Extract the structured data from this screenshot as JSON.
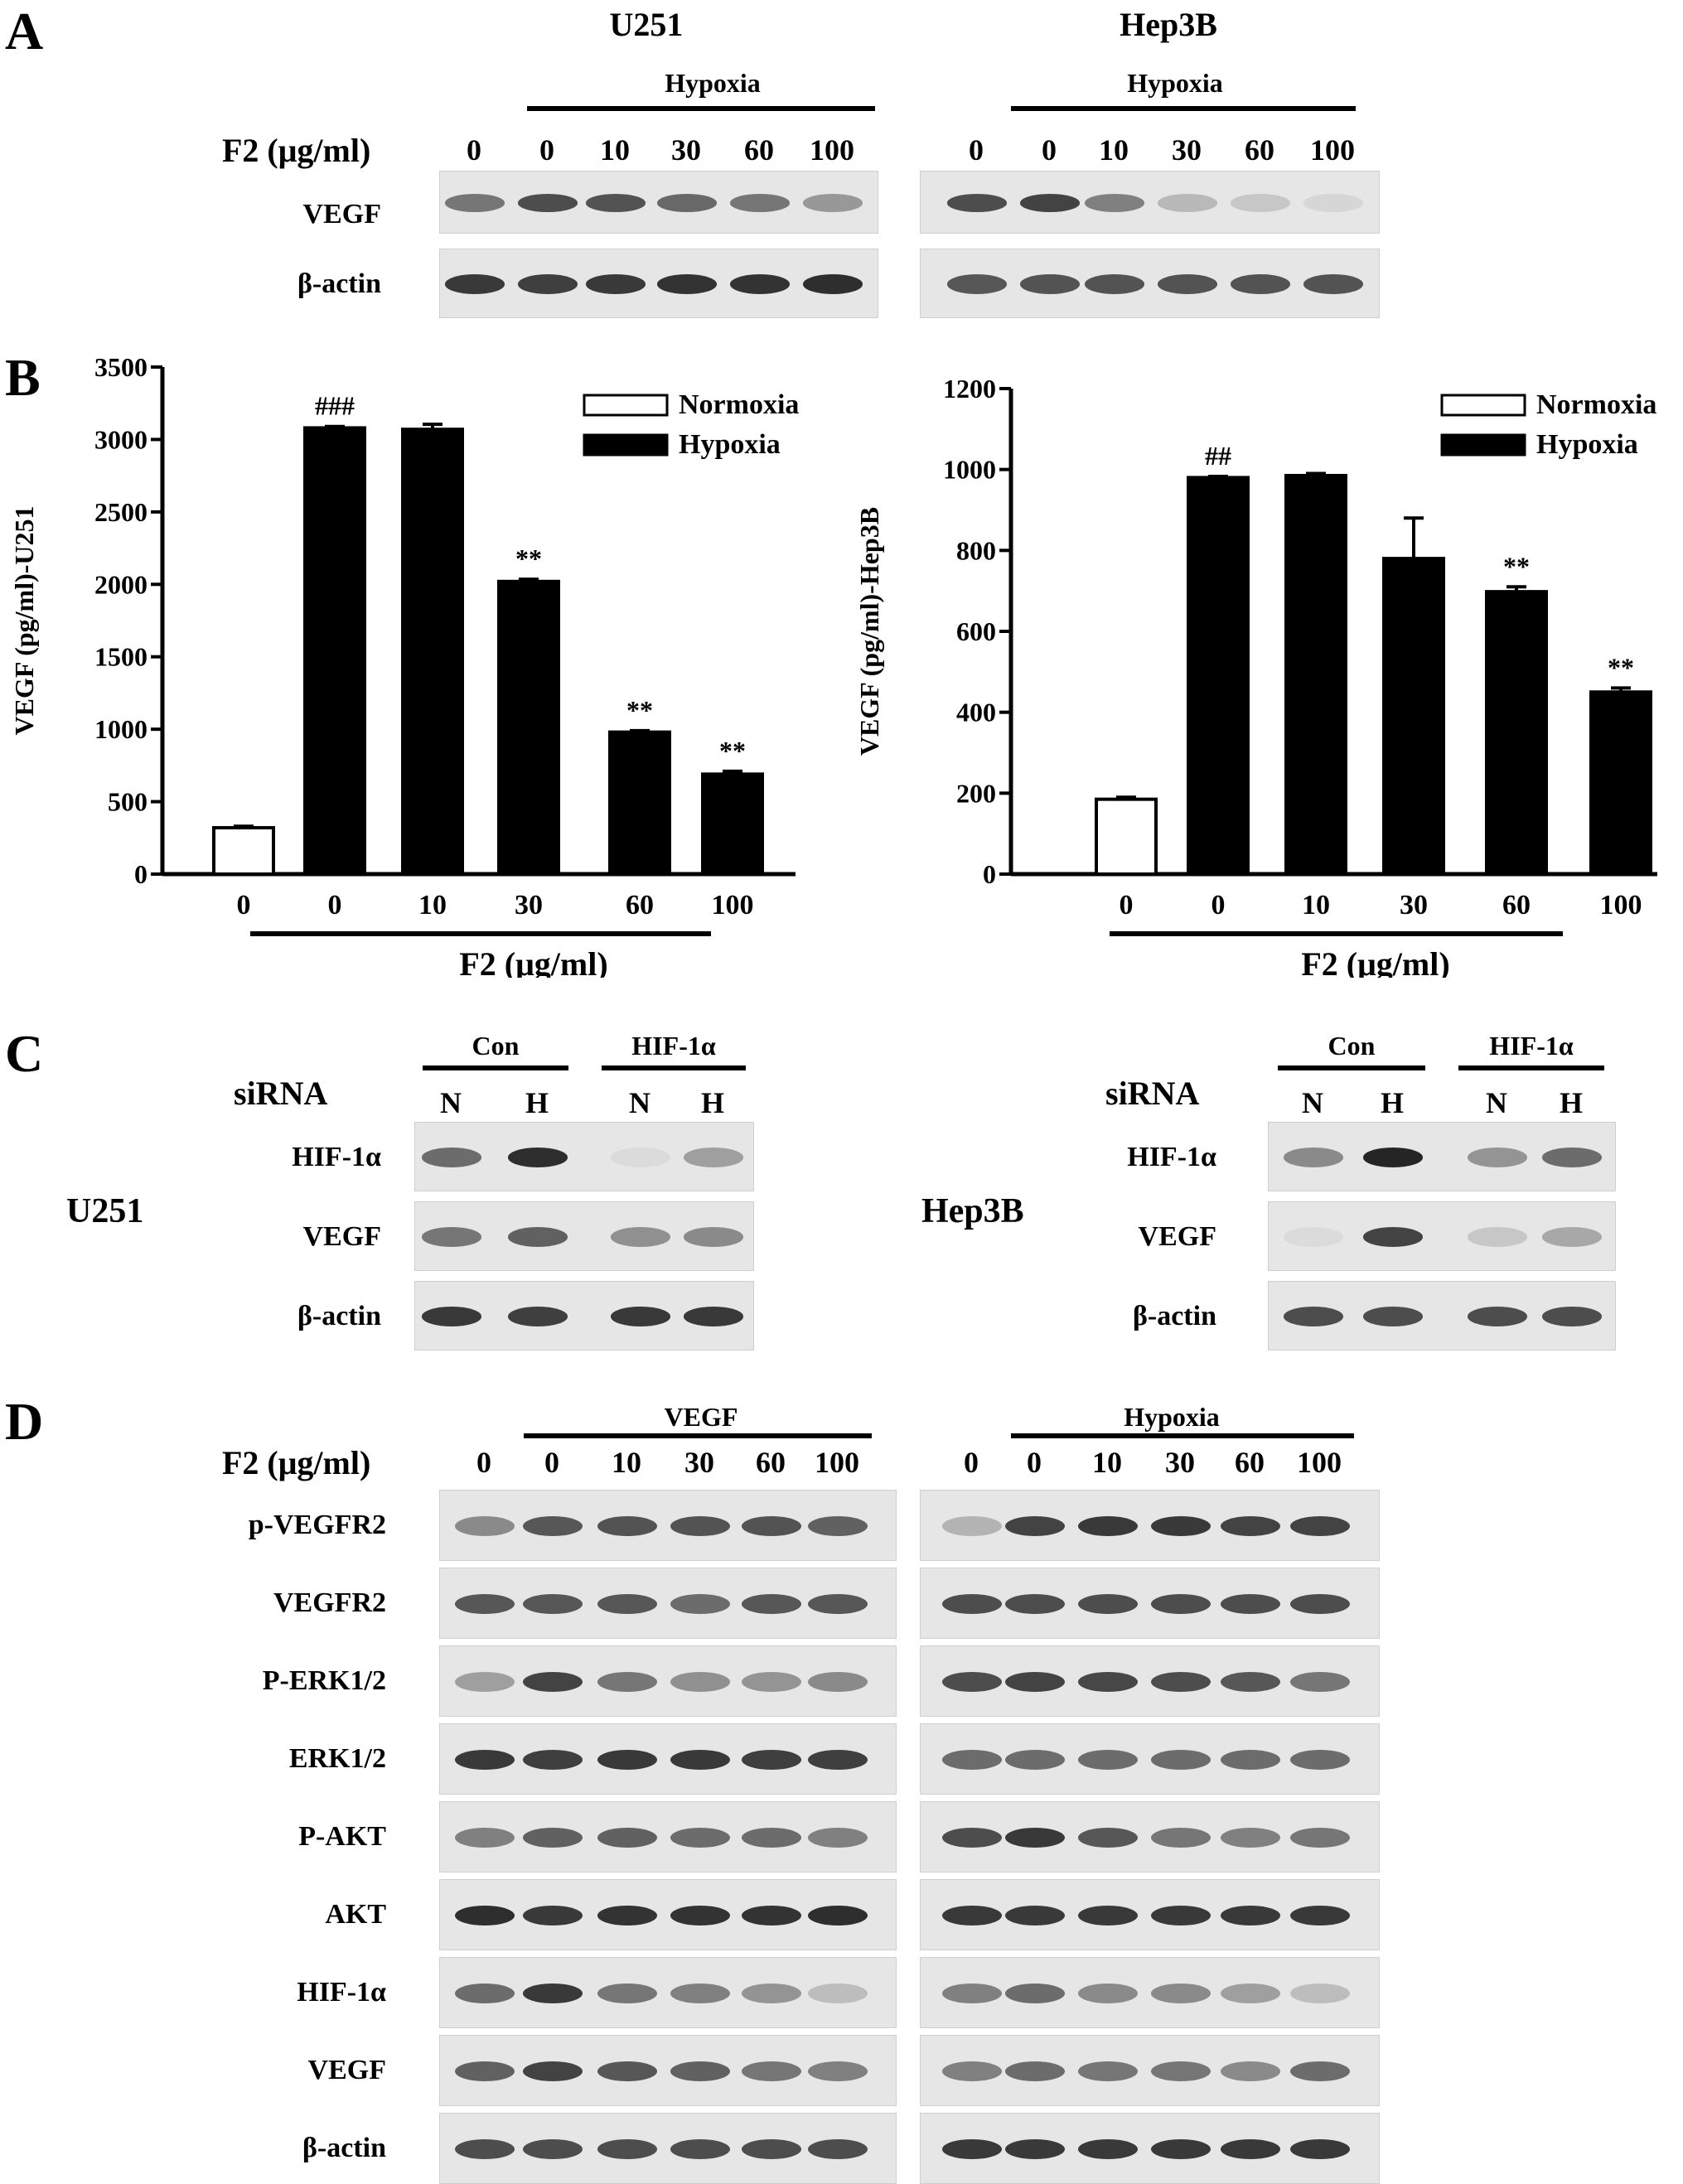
{
  "panels": {
    "A": {
      "label": "A",
      "cell_u251": "U251",
      "cell_hep3b": "Hep3B",
      "condition": "Hypoxia",
      "dose_label": "F2 (μg/ml)",
      "doses": [
        "0",
        "0",
        "10",
        "30",
        "60",
        "100"
      ],
      "rows": [
        "VEGF",
        "β-actin"
      ],
      "intensities": {
        "U251": [
          [
            0.55,
            0.75,
            0.72,
            0.62,
            0.55,
            0.38
          ],
          [
            0.85,
            0.82,
            0.85,
            0.88,
            0.88,
            0.9
          ]
        ],
        "Hep3B": [
          [
            0.75,
            0.8,
            0.5,
            0.22,
            0.15,
            0.08
          ],
          [
            0.7,
            0.72,
            0.72,
            0.72,
            0.72,
            0.72
          ]
        ]
      }
    },
    "B": {
      "label": "B",
      "legend_normoxia": "Normoxia",
      "legend_hypoxia": "Hypoxia",
      "xlabel": "F2 (μg/ml)"
    },
    "C": {
      "label": "C",
      "cell_u251": "U251",
      "cell_hep3b": "Hep3B",
      "sirna_label": "siRNA",
      "group_con": "Con",
      "group_hif": "HIF-1α",
      "lanes": [
        "N",
        "H",
        "N",
        "H"
      ],
      "rows": [
        "HIF-1α",
        "VEGF",
        "β-actin"
      ],
      "intensities": {
        "U251": [
          [
            0.6,
            0.9,
            0.05,
            0.35
          ],
          [
            0.55,
            0.65,
            0.42,
            0.45
          ],
          [
            0.85,
            0.82,
            0.85,
            0.85
          ]
        ],
        "Hep3B": [
          [
            0.45,
            0.95,
            0.4,
            0.6
          ],
          [
            0.05,
            0.8,
            0.15,
            0.3
          ],
          [
            0.75,
            0.75,
            0.75,
            0.75
          ]
        ]
      }
    },
    "D": {
      "label": "D",
      "condition_left": "VEGF",
      "condition_right": "Hypoxia",
      "dose_label": "F2 (μg/ml)",
      "doses": [
        "0",
        "0",
        "10",
        "30",
        "60",
        "100"
      ],
      "rows": [
        "p-VEGFR2",
        "VEGFR2",
        "P-ERK1/2",
        "ERK1/2",
        "P-AKT",
        "AKT",
        "HIF-1α",
        "VEGF",
        "β-actin"
      ],
      "intensities": {
        "left": [
          [
            0.45,
            0.7,
            0.72,
            0.72,
            0.72,
            0.65
          ],
          [
            0.7,
            0.7,
            0.7,
            0.6,
            0.7,
            0.7
          ],
          [
            0.35,
            0.8,
            0.55,
            0.42,
            0.4,
            0.45
          ],
          [
            0.85,
            0.82,
            0.85,
            0.85,
            0.82,
            0.82
          ],
          [
            0.5,
            0.65,
            0.65,
            0.6,
            0.6,
            0.5
          ],
          [
            0.9,
            0.85,
            0.88,
            0.88,
            0.88,
            0.9
          ],
          [
            0.6,
            0.85,
            0.55,
            0.5,
            0.4,
            0.2
          ],
          [
            0.65,
            0.8,
            0.7,
            0.65,
            0.55,
            0.5
          ],
          [
            0.75,
            0.75,
            0.75,
            0.75,
            0.75,
            0.75
          ]
        ],
        "right": [
          [
            0.25,
            0.8,
            0.85,
            0.85,
            0.8,
            0.8
          ],
          [
            0.75,
            0.75,
            0.75,
            0.75,
            0.75,
            0.75
          ],
          [
            0.75,
            0.8,
            0.78,
            0.75,
            0.7,
            0.55
          ],
          [
            0.6,
            0.6,
            0.6,
            0.6,
            0.6,
            0.6
          ],
          [
            0.75,
            0.85,
            0.7,
            0.55,
            0.5,
            0.55
          ],
          [
            0.85,
            0.85,
            0.85,
            0.85,
            0.85,
            0.85
          ],
          [
            0.5,
            0.6,
            0.45,
            0.45,
            0.35,
            0.2
          ],
          [
            0.5,
            0.6,
            0.55,
            0.55,
            0.45,
            0.6
          ],
          [
            0.85,
            0.85,
            0.85,
            0.85,
            0.85,
            0.85
          ]
        ]
      }
    }
  },
  "chart_data": [
    {
      "type": "bar",
      "categories": [
        "0",
        "0",
        "10",
        "30",
        "60",
        "100"
      ],
      "series": [
        {
          "name": "Normoxia",
          "values": [
            320,
            null,
            null,
            null,
            null,
            null
          ],
          "fill": "#ffffff"
        },
        {
          "name": "Hypoxia",
          "values": [
            null,
            3080,
            3070,
            2020,
            980,
            690
          ],
          "fill": "#000000"
        }
      ],
      "errors": [
        10,
        10,
        35,
        15,
        10,
        20
      ],
      "annotations": [
        "",
        "###",
        "",
        "**",
        "**",
        "**"
      ],
      "ylabel": "VEGF (pg/ml)-U251",
      "xlabel": "F2 (μg/ml)",
      "ylim": [
        0,
        3500
      ],
      "yticks": [
        0,
        500,
        1000,
        1500,
        2000,
        2500,
        3000,
        3500
      ],
      "legend": "top-right"
    },
    {
      "type": "bar",
      "categories": [
        "0",
        "0",
        "10",
        "30",
        "60",
        "100"
      ],
      "series": [
        {
          "name": "Normoxia",
          "values": [
            185,
            null,
            null,
            null,
            null,
            null
          ],
          "fill": "#ffffff"
        },
        {
          "name": "Hypoxia",
          "values": [
            null,
            980,
            985,
            780,
            698,
            450
          ],
          "fill": "#000000"
        }
      ],
      "errors": [
        5,
        3,
        5,
        100,
        12,
        10
      ],
      "annotations": [
        "",
        "##",
        "",
        "",
        "**",
        "**"
      ],
      "ylabel": "VEGF (pg/ml)-Hep3B",
      "xlabel": "F2 (μg/ml)",
      "ylim": [
        0,
        1200
      ],
      "yticks": [
        0,
        200,
        400,
        600,
        800,
        1000,
        1200
      ],
      "legend": "top-right"
    }
  ]
}
